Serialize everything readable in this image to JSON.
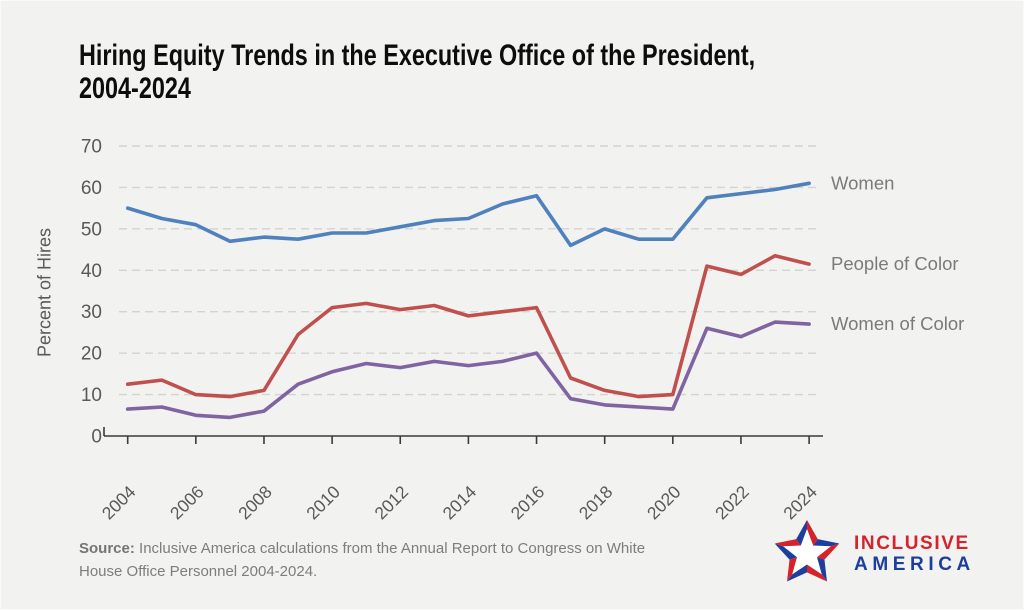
{
  "title": {
    "line1": "Hiring Equity Trends in the Executive Office of the President,",
    "line2": "2004-2024"
  },
  "chart_data": {
    "type": "line",
    "ylabel": "Percent of Hires",
    "ylim": [
      0,
      70
    ],
    "yticks": [
      0,
      10,
      20,
      30,
      40,
      50,
      60,
      70
    ],
    "xticks": [
      2004,
      2006,
      2008,
      2010,
      2012,
      2014,
      2016,
      2018,
      2020,
      2022,
      2024
    ],
    "grid": "horizontal-dashed",
    "legend_position": "right-end-labels",
    "x": [
      2004,
      2005,
      2006,
      2007,
      2008,
      2009,
      2010,
      2011,
      2012,
      2013,
      2014,
      2015,
      2016,
      2017,
      2018,
      2019,
      2020,
      2021,
      2022,
      2023,
      2024
    ],
    "series": [
      {
        "name": "Women",
        "color": "#4f81bd",
        "values": [
          55,
          52.5,
          51,
          47,
          48,
          47.5,
          49,
          49,
          50.5,
          52,
          52.5,
          56,
          58,
          46,
          50,
          47.5,
          47.5,
          57.5,
          58.5,
          59.5,
          61
        ]
      },
      {
        "name": "People of Color",
        "color": "#c0504d",
        "values": [
          12.5,
          13.5,
          10,
          9.5,
          11,
          24.5,
          31,
          32,
          30.5,
          31.5,
          29,
          30,
          31,
          14,
          11,
          9.5,
          10,
          41,
          39,
          43.5,
          41.5
        ]
      },
      {
        "name": "Women of Color",
        "color": "#8064a2",
        "values": [
          6.5,
          7,
          5,
          4.5,
          6,
          12.5,
          15.5,
          17.5,
          16.5,
          18,
          17,
          18,
          20,
          9,
          7.5,
          7,
          6.5,
          26,
          24,
          27.5,
          27
        ]
      }
    ],
    "style": {
      "grid_color": "#d3d3d1",
      "axis_color": "#3a3a3a",
      "tick_label_color": "#595959",
      "series_label_color": "#7a7a7a"
    }
  },
  "footer": {
    "source_label": "Source:",
    "source_text": "Inclusive America calculations from the Annual Report to Congress on White House Office Personnel 2004-2024."
  },
  "logo": {
    "line1": "INCLUSIVE",
    "line2": "AMERICA",
    "red": "#d6222b",
    "blue": "#1e3e9d"
  }
}
